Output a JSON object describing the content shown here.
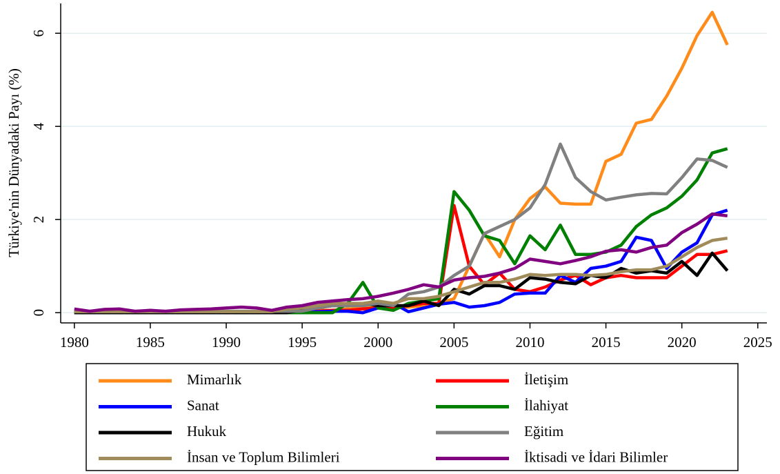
{
  "chart_data": {
    "type": "line",
    "y_label": "Türkiye'nin Dünyadaki Payı (%)",
    "x": [
      1980,
      1981,
      1982,
      1983,
      1984,
      1985,
      1986,
      1987,
      1988,
      1989,
      1990,
      1991,
      1992,
      1993,
      1994,
      1995,
      1996,
      1997,
      1998,
      1999,
      2000,
      2001,
      2002,
      2003,
      2004,
      2005,
      2006,
      2007,
      2008,
      2009,
      2010,
      2011,
      2012,
      2013,
      2014,
      2015,
      2016,
      2017,
      2018,
      2019,
      2020,
      2021,
      2022,
      2023
    ],
    "xlim": [
      1979.1,
      2025.6
    ],
    "xticks": [
      1980,
      1985,
      1990,
      1995,
      2000,
      2005,
      2010,
      2015,
      2020,
      2025
    ],
    "ylim": [
      -0.22,
      6.64
    ],
    "yticks": [
      0,
      2,
      4,
      6
    ],
    "grid": true,
    "series": [
      {
        "name": "Mimarlık",
        "color": "#ff8c1a",
        "values": [
          0.02,
          0.02,
          0.02,
          0.02,
          0.02,
          0.02,
          0.02,
          0.02,
          0.02,
          0.02,
          0.02,
          0.02,
          0.02,
          0.02,
          0.02,
          0.02,
          0.05,
          0.05,
          0.08,
          0.1,
          0.12,
          0.1,
          0.12,
          0.15,
          0.2,
          0.3,
          1.0,
          1.7,
          1.2,
          2.0,
          2.45,
          2.7,
          2.35,
          2.33,
          2.33,
          3.25,
          3.4,
          4.07,
          4.15,
          4.65,
          5.25,
          5.95,
          6.45,
          5.75
        ]
      },
      {
        "name": "İletişim",
        "color": "#ff0000",
        "values": [
          0.01,
          0.01,
          0.01,
          0.01,
          0.01,
          0.01,
          0.01,
          0.01,
          0.01,
          0.01,
          0.01,
          0.01,
          0.01,
          0.01,
          0.01,
          0.01,
          0.03,
          0.05,
          0.05,
          0.08,
          0.1,
          0.1,
          0.15,
          0.2,
          0.2,
          2.3,
          1.0,
          0.6,
          0.85,
          0.5,
          0.45,
          0.55,
          0.7,
          0.8,
          0.6,
          0.75,
          0.8,
          0.75,
          0.75,
          0.75,
          1.0,
          1.25,
          1.25,
          1.33
        ]
      },
      {
        "name": "Sanat",
        "color": "#0000ff",
        "values": [
          0.01,
          0.01,
          0.01,
          0.01,
          0.01,
          0.01,
          0.01,
          0.01,
          0.01,
          0.01,
          0.01,
          0.01,
          0.01,
          0.01,
          0.01,
          0.01,
          0.02,
          0.03,
          0.03,
          0.0,
          0.1,
          0.2,
          0.02,
          0.1,
          0.18,
          0.22,
          0.12,
          0.15,
          0.22,
          0.4,
          0.42,
          0.42,
          0.8,
          0.65,
          0.95,
          1.0,
          1.1,
          1.62,
          1.55,
          0.95,
          1.3,
          1.5,
          2.1,
          2.2
        ]
      },
      {
        "name": "İlahiyat",
        "color": "#008000",
        "values": [
          0,
          0,
          0,
          0,
          0,
          0,
          0,
          0,
          0,
          0,
          0,
          0,
          0,
          0,
          0,
          0,
          0,
          0,
          0.2,
          0.65,
          0.1,
          0.05,
          0.2,
          0.25,
          0.3,
          2.6,
          2.2,
          1.65,
          1.55,
          1.05,
          1.65,
          1.35,
          1.88,
          1.25,
          1.25,
          1.3,
          1.45,
          1.85,
          2.1,
          2.25,
          2.5,
          2.85,
          3.43,
          3.52
        ]
      },
      {
        "name": "Hukuk",
        "color": "#000000",
        "values": [
          0,
          0,
          0,
          0,
          0,
          0,
          0,
          0,
          0,
          0,
          0,
          0,
          0,
          0,
          0,
          0.05,
          0.1,
          0.15,
          0.15,
          0.2,
          0.15,
          0.15,
          0.15,
          0.25,
          0.15,
          0.5,
          0.4,
          0.58,
          0.58,
          0.5,
          0.75,
          0.72,
          0.65,
          0.62,
          0.8,
          0.75,
          0.95,
          0.85,
          0.9,
          0.85,
          1.1,
          0.8,
          1.28,
          0.9
        ]
      },
      {
        "name": "Eğitim",
        "color": "#808080",
        "values": [
          0.03,
          0.03,
          0.03,
          0.03,
          0.03,
          0.03,
          0.03,
          0.03,
          0.03,
          0.03,
          0.03,
          0.03,
          0.03,
          0.03,
          0.03,
          0.03,
          0.1,
          0.15,
          0.15,
          0.15,
          0.2,
          0.15,
          0.4,
          0.45,
          0.55,
          0.8,
          1.0,
          1.7,
          1.85,
          2.0,
          2.25,
          2.75,
          3.62,
          2.9,
          2.6,
          2.42,
          2.48,
          2.53,
          2.56,
          2.55,
          2.9,
          3.3,
          3.27,
          3.12
        ]
      },
      {
        "name": "İnsan ve Toplum Bilimleri",
        "color": "#a08c5a",
        "values": [
          0.02,
          0.02,
          0.02,
          0.02,
          0.02,
          0.02,
          0.02,
          0.02,
          0.02,
          0.02,
          0.02,
          0.02,
          0.02,
          0.02,
          0.08,
          0.1,
          0.15,
          0.2,
          0.2,
          0.2,
          0.25,
          0.2,
          0.3,
          0.3,
          0.35,
          0.45,
          0.55,
          0.65,
          0.65,
          0.72,
          0.82,
          0.8,
          0.82,
          0.82,
          0.8,
          0.82,
          0.88,
          0.92,
          0.92,
          1.0,
          1.2,
          1.4,
          1.55,
          1.6
        ]
      },
      {
        "name": "İktisadi ve İdari Bilimler",
        "color": "#800080",
        "values": [
          0.08,
          0.03,
          0.07,
          0.08,
          0.03,
          0.05,
          0.03,
          0.06,
          0.07,
          0.08,
          0.1,
          0.12,
          0.1,
          0.05,
          0.12,
          0.15,
          0.22,
          0.25,
          0.28,
          0.3,
          0.35,
          0.42,
          0.5,
          0.6,
          0.55,
          0.7,
          0.75,
          0.78,
          0.85,
          0.95,
          1.15,
          1.1,
          1.05,
          1.12,
          1.2,
          1.32,
          1.35,
          1.3,
          1.4,
          1.45,
          1.72,
          1.9,
          2.12,
          2.08
        ]
      }
    ]
  }
}
